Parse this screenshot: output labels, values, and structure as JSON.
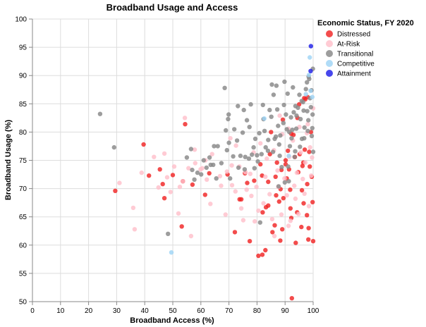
{
  "colors": {
    "Distressed": "#f02424",
    "At-Risk": "#ffc0cb",
    "Transitional": "#888888",
    "Competitive": "#9fd4f5",
    "Attainment": "#1f1fe8"
  },
  "chart_data": {
    "type": "scatter",
    "title": "Broadband Usage and Access",
    "xlabel": "Broadband Access (%)",
    "ylabel": "Broadband Usage (%)",
    "xlim": [
      0,
      100
    ],
    "ylim": [
      50,
      100
    ],
    "xticks": [
      "0",
      "10",
      "20",
      "30",
      "40",
      "50",
      "60",
      "70",
      "80",
      "90",
      "100"
    ],
    "yticks": [
      "50",
      "55",
      "60",
      "65",
      "70",
      "75",
      "80",
      "85",
      "90",
      "95",
      "100"
    ],
    "grid": true,
    "legend": {
      "title": "Economic Status, FY 2020",
      "position": "right"
    },
    "series": [
      {
        "name": "Distressed",
        "points": [
          [
            29.5,
            69.6
          ],
          [
            39.6,
            77.8
          ],
          [
            41.5,
            72.3
          ],
          [
            45.4,
            73.4
          ],
          [
            46.4,
            70.8
          ],
          [
            47,
            68.3
          ],
          [
            50,
            72.4
          ],
          [
            53.2,
            63.3
          ],
          [
            53.6,
            71.3
          ],
          [
            54.4,
            81.4
          ],
          [
            57,
            70.7
          ],
          [
            61.5,
            68.9
          ],
          [
            63,
            72.7
          ],
          [
            69.5,
            72.5
          ],
          [
            72.1,
            62.3
          ],
          [
            73.8,
            68.1
          ],
          [
            74.4,
            68.1
          ],
          [
            75.7,
            72.7
          ],
          [
            76.5,
            71
          ],
          [
            77.4,
            60.7
          ],
          [
            79,
            71.4
          ],
          [
            80.5,
            58.1
          ],
          [
            81.2,
            74.3
          ],
          [
            81.9,
            58.3
          ],
          [
            81.8,
            72.3
          ],
          [
            82,
            65.8
          ],
          [
            83,
            59.1
          ],
          [
            83.2,
            66.7
          ],
          [
            84,
            67
          ],
          [
            84,
            71.2
          ],
          [
            85.5,
            62.3
          ],
          [
            85,
            80
          ],
          [
            86.3,
            63.5
          ],
          [
            86.8,
            68.8
          ],
          [
            87.1,
            74.6
          ],
          [
            87.9,
            67.7
          ],
          [
            88.3,
            60.8
          ],
          [
            89,
            62.8
          ],
          [
            88.7,
            73.3
          ],
          [
            89.4,
            68.3
          ],
          [
            90.2,
            74.3
          ],
          [
            90.2,
            75
          ],
          [
            90.6,
            71.8
          ],
          [
            91.4,
            73.4
          ],
          [
            91.8,
            69.8
          ],
          [
            92.4,
            50.6
          ],
          [
            92.2,
            64.8
          ],
          [
            91.9,
            66.5
          ],
          [
            93.5,
            75.6
          ],
          [
            93,
            79.5
          ],
          [
            93.8,
            60.4
          ],
          [
            94.3,
            65.8
          ],
          [
            94.7,
            72.9
          ],
          [
            95.2,
            76.1
          ],
          [
            95.8,
            63.2
          ],
          [
            96,
            69.7
          ],
          [
            96.2,
            74
          ],
          [
            96.5,
            74.6
          ],
          [
            96.6,
            67.4
          ],
          [
            97.2,
            85.8
          ],
          [
            97.8,
            65.3
          ],
          [
            97.9,
            70.8
          ],
          [
            98.3,
            61
          ],
          [
            98.4,
            63
          ],
          [
            98.6,
            76.5
          ],
          [
            98.8,
            73.9
          ],
          [
            99.2,
            80
          ],
          [
            99.5,
            72.1
          ],
          [
            99.8,
            67.6
          ],
          [
            100,
            60.7
          ],
          [
            98,
            86.2
          ],
          [
            96.8,
            86
          ],
          [
            95,
            84.9
          ],
          [
            89.2,
            82.2
          ],
          [
            84.6,
            76.1
          ],
          [
            92.2,
            79.7
          ],
          [
            86.6,
            72.1
          ],
          [
            88.4,
            69.9
          ],
          [
            94.4,
            82.5
          ],
          [
            91,
            76.7
          ],
          [
            97,
            76.9
          ]
        ]
      },
      {
        "name": "At-Risk",
        "points": [
          [
            31,
            71
          ],
          [
            35.9,
            66.6
          ],
          [
            36.4,
            62.8
          ],
          [
            38.9,
            72.8
          ],
          [
            43.3,
            75.6
          ],
          [
            44.9,
            70.2
          ],
          [
            47,
            76.2
          ],
          [
            48,
            72
          ],
          [
            49.2,
            69.4
          ],
          [
            50.5,
            73.9
          ],
          [
            52,
            65.6
          ],
          [
            52.5,
            70.3
          ],
          [
            53.6,
            71.3
          ],
          [
            54.3,
            82.5
          ],
          [
            55.6,
            73.6
          ],
          [
            56.5,
            61.6
          ],
          [
            58,
            74.5
          ],
          [
            59.9,
            73.4
          ],
          [
            61.6,
            75
          ],
          [
            62.1,
            71.6
          ],
          [
            63.4,
            67.3
          ],
          [
            64,
            76.1
          ],
          [
            66.8,
            72.2
          ],
          [
            67.2,
            70.5
          ],
          [
            68.8,
            65.4
          ],
          [
            69.3,
            73
          ],
          [
            71,
            74.1
          ],
          [
            71.1,
            70.6
          ],
          [
            72.3,
            69.5
          ],
          [
            72.5,
            77.6
          ],
          [
            73.7,
            73.9
          ],
          [
            74.4,
            66.5
          ],
          [
            75.1,
            64.4
          ],
          [
            76.3,
            69.8
          ],
          [
            77.6,
            72.6
          ],
          [
            78,
            68.7
          ],
          [
            78.8,
            76.4
          ],
          [
            79.2,
            64.2
          ],
          [
            79.8,
            70.3
          ],
          [
            80.5,
            66.1
          ],
          [
            81.2,
            78
          ],
          [
            82.3,
            67.4
          ],
          [
            83,
            72.1
          ],
          [
            83.5,
            75.3
          ],
          [
            84.5,
            69
          ],
          [
            85.4,
            64.6
          ],
          [
            86,
            76.8
          ],
          [
            86.2,
            61.6
          ],
          [
            87.3,
            73.2
          ],
          [
            87.6,
            70.3
          ],
          [
            88.7,
            65.4
          ],
          [
            89,
            79.6
          ],
          [
            89.8,
            71.8
          ],
          [
            90.6,
            68.8
          ],
          [
            91.5,
            75.6
          ],
          [
            91.2,
            63.4
          ],
          [
            91.9,
            64.3
          ],
          [
            92.8,
            78.5
          ],
          [
            93.3,
            70.5
          ],
          [
            93.7,
            68.2
          ],
          [
            94.2,
            72.8
          ],
          [
            94.8,
            65.5
          ],
          [
            95.1,
            80.9
          ],
          [
            95.6,
            76.4
          ],
          [
            96.3,
            71.7
          ],
          [
            96.9,
            69.1
          ],
          [
            97.2,
            74.6
          ],
          [
            97.8,
            79.8
          ],
          [
            98.1,
            81.4
          ],
          [
            98.5,
            66.9
          ],
          [
            98.9,
            77.3
          ],
          [
            99.3,
            72.3
          ],
          [
            99.6,
            75.5
          ],
          [
            100,
            84.2
          ],
          [
            60.5,
            73.6
          ],
          [
            57.8,
            76.9
          ],
          [
            70.5,
            78.9
          ],
          [
            75.9,
            72.9
          ],
          [
            88.1,
            82.9
          ],
          [
            91.2,
            80.6
          ]
        ]
      },
      {
        "name": "Transitional",
        "points": [
          [
            24.1,
            83.2
          ],
          [
            29.1,
            77.3
          ],
          [
            48.3,
            62
          ],
          [
            55,
            75.5
          ],
          [
            56.5,
            77
          ],
          [
            63.1,
            75.5
          ],
          [
            64.7,
            77.5
          ],
          [
            66,
            77.5
          ],
          [
            68.5,
            87.8
          ],
          [
            68.9,
            80.3
          ],
          [
            69.7,
            82.3
          ],
          [
            69.9,
            83.1
          ],
          [
            70,
            78.1
          ],
          [
            70.4,
            71.8
          ],
          [
            71.9,
            80.5
          ],
          [
            72.9,
            78.5
          ],
          [
            73.2,
            84.6
          ],
          [
            74.1,
            75.8
          ],
          [
            74.9,
            79.9
          ],
          [
            75.8,
            75.6
          ],
          [
            75.3,
            83.9
          ],
          [
            76.4,
            82.1
          ],
          [
            77.3,
            80.9
          ],
          [
            77.8,
            84.9
          ],
          [
            78.2,
            76
          ],
          [
            78.8,
            77.3
          ],
          [
            79.4,
            78.8
          ],
          [
            80.3,
            74.8
          ],
          [
            80.8,
            79.8
          ],
          [
            81.1,
            64
          ],
          [
            81.6,
            76.1
          ],
          [
            82.3,
            82.3
          ],
          [
            82.7,
            80.2
          ],
          [
            83.1,
            77.3
          ],
          [
            84,
            78.6
          ],
          [
            84.5,
            83.9
          ],
          [
            85.3,
            88.4
          ],
          [
            85.7,
            76.5
          ],
          [
            86.3,
            78.8
          ],
          [
            86.7,
            79.2
          ],
          [
            87.2,
            84
          ],
          [
            87.5,
            81.1
          ],
          [
            87.9,
            77.8
          ],
          [
            88.3,
            79.4
          ],
          [
            88.8,
            73.8
          ],
          [
            89.4,
            81.6
          ],
          [
            89.8,
            88.9
          ],
          [
            90.3,
            83.1
          ],
          [
            90.6,
            80.5
          ],
          [
            91.1,
            73.9
          ],
          [
            91.5,
            80
          ],
          [
            92.1,
            82.6
          ],
          [
            92.3,
            78.9
          ],
          [
            92.8,
            87.9
          ],
          [
            93.1,
            83.5
          ],
          [
            93.6,
            76.6
          ],
          [
            94,
            80.6
          ],
          [
            94.6,
            84.3
          ],
          [
            95.1,
            86.6
          ],
          [
            95.5,
            82.3
          ],
          [
            96,
            78.8
          ],
          [
            96.4,
            85.3
          ],
          [
            96.9,
            80.8
          ],
          [
            97.4,
            87.6
          ],
          [
            97.9,
            83.7
          ],
          [
            98.3,
            82.1
          ],
          [
            98.6,
            89.4
          ],
          [
            98.9,
            86
          ],
          [
            99.2,
            84.4
          ],
          [
            99.5,
            79.3
          ],
          [
            99.8,
            83.1
          ],
          [
            100,
            76.5
          ],
          [
            99.9,
            91.2
          ],
          [
            99.4,
            87.4
          ],
          [
            97.8,
            88.8
          ],
          [
            96.6,
            83.8
          ],
          [
            95.9,
            85.5
          ],
          [
            94.1,
            82.9
          ],
          [
            93.7,
            84.6
          ],
          [
            92.6,
            80.4
          ],
          [
            91.7,
            77.5
          ],
          [
            90.9,
            86.8
          ],
          [
            89.6,
            84.8
          ],
          [
            88.1,
            75.8
          ],
          [
            86.9,
            88.2
          ],
          [
            85.1,
            82.7
          ],
          [
            83.9,
            76.7
          ],
          [
            82.1,
            84.8
          ],
          [
            80,
            75.9
          ],
          [
            79.1,
            73.6
          ],
          [
            77.1,
            75.3
          ],
          [
            75.6,
            73.4
          ],
          [
            73.4,
            73.7
          ],
          [
            71.5,
            75.7
          ],
          [
            69.3,
            76.8
          ],
          [
            67.3,
            74.5
          ],
          [
            65.5,
            71.8
          ],
          [
            64.4,
            74.2
          ],
          [
            63.5,
            74.2
          ],
          [
            62,
            73.7
          ],
          [
            61,
            75
          ],
          [
            60.1,
            72.5
          ],
          [
            58.8,
            72.8
          ],
          [
            57.7,
            71.6
          ],
          [
            56.9,
            73.3
          ],
          [
            85.9,
            86.6
          ],
          [
            96.8,
            78.9
          ],
          [
            98.1,
            80.2
          ],
          [
            99.7,
            80.7
          ],
          [
            95.3,
            77.4
          ],
          [
            93.4,
            75.6
          ],
          [
            91.3,
            71.3
          ],
          [
            89.9,
            71.1
          ],
          [
            87.7,
            70.4
          ],
          [
            98.4,
            89.8
          ]
        ]
      },
      {
        "name": "Competitive",
        "points": [
          [
            49.5,
            58.7
          ],
          [
            82.6,
            82.4
          ],
          [
            91.3,
            75.8
          ],
          [
            97.4,
            86.7
          ],
          [
            98.5,
            90.1
          ],
          [
            98.8,
            93.2
          ],
          [
            99.7,
            86.2
          ],
          [
            99.1,
            87.3
          ]
        ]
      },
      {
        "name": "Attainment",
        "points": [
          [
            99.2,
            95.2
          ],
          [
            99.1,
            90.8
          ]
        ]
      }
    ]
  }
}
